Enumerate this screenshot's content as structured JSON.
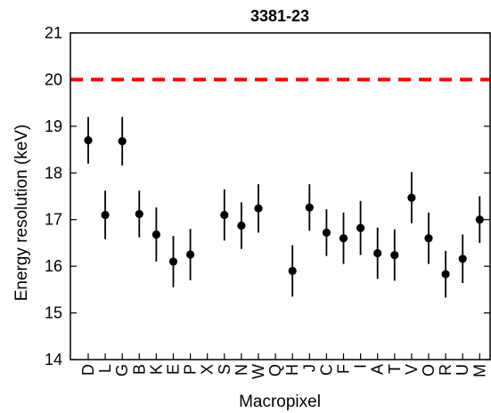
{
  "chart_data": {
    "type": "scatter",
    "title": "3381-23",
    "xlabel": "Macropixel",
    "ylabel": "Energy resolution (keV)",
    "ylim": [
      14,
      21
    ],
    "yticks": [
      14,
      15,
      16,
      17,
      18,
      19,
      20,
      21
    ],
    "grid": false,
    "categories": [
      "D",
      "L",
      "G",
      "B",
      "K",
      "E",
      "P",
      "X",
      "S",
      "N",
      "W",
      "Q",
      "H",
      "J",
      "C",
      "F",
      "I",
      "A",
      "T",
      "V",
      "O",
      "R",
      "U",
      "M"
    ],
    "values": [
      18.7,
      17.1,
      18.68,
      17.12,
      16.68,
      16.1,
      16.25,
      null,
      17.1,
      16.87,
      17.24,
      null,
      15.9,
      17.26,
      16.72,
      16.6,
      16.82,
      16.28,
      16.24,
      17.47,
      16.6,
      15.83,
      16.16,
      17.0
    ],
    "errors": [
      0.5,
      0.52,
      0.52,
      0.5,
      0.58,
      0.55,
      0.55,
      null,
      0.55,
      0.5,
      0.52,
      null,
      0.55,
      0.5,
      0.5,
      0.55,
      0.58,
      0.55,
      0.55,
      0.55,
      0.55,
      0.5,
      0.52,
      0.5
    ],
    "reference_line": {
      "y": 20,
      "color": "#ff0000",
      "style": "dashed"
    },
    "marker_color": "#000000"
  }
}
